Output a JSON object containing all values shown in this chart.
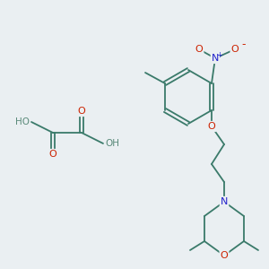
{
  "bg_color": "#eaeff2",
  "bond_color": "#3a7a6a",
  "atom_colors": {
    "O": "#cc2200",
    "N": "#2222cc",
    "C": "#3a7a6a",
    "H": "#5a8a7a"
  },
  "figsize": [
    3.0,
    3.0
  ],
  "dpi": 100
}
